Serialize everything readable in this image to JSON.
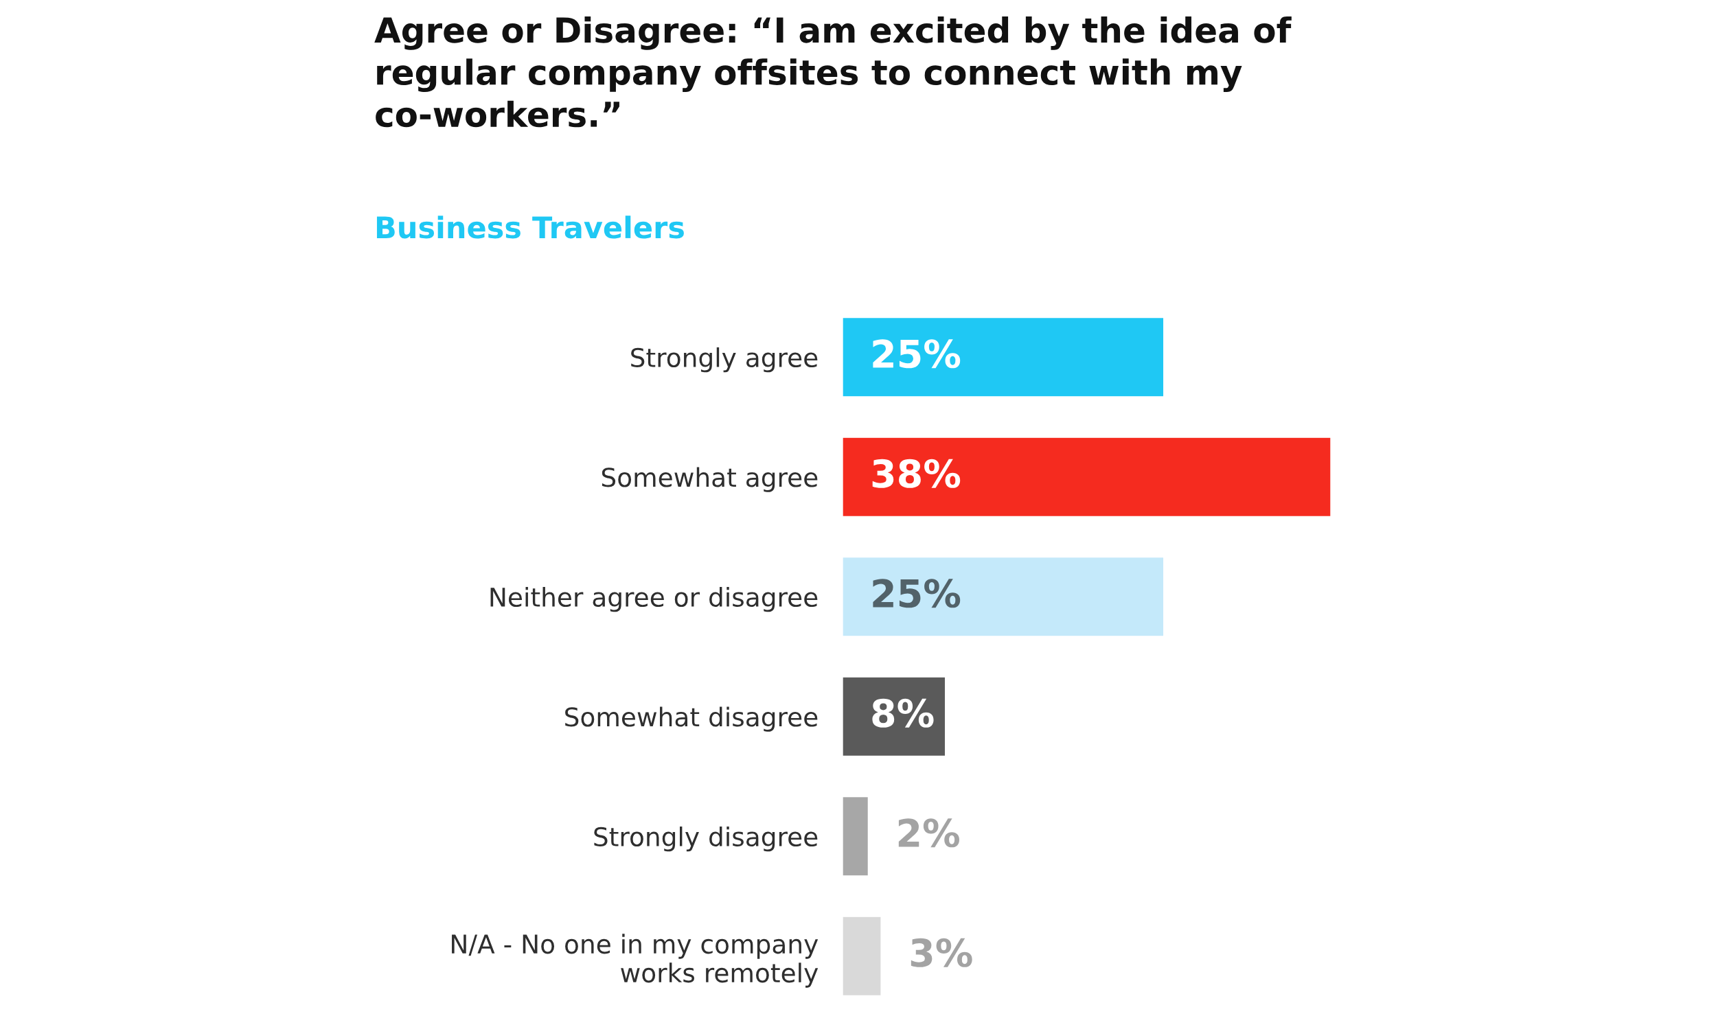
{
  "chart_data": {
    "type": "bar",
    "orientation": "horizontal",
    "title": "Agree or Disagree: “I am excited by the idea of\nregular company offsites to connect with my\nco-workers.”",
    "subtitle": "Business Travelers",
    "categories": [
      "Strongly agree",
      "Somewhat agree",
      "Neither agree or disagree",
      "Somewhat disagree",
      "Strongly disagree",
      "N/A - No one in my company\nworks remotely"
    ],
    "values": [
      25,
      38,
      25,
      8,
      2,
      3
    ],
    "colors": [
      "#1fc8f4",
      "#f52b1f",
      "#c4e9fa",
      "#5a5a5a",
      "#a7a7a7",
      "#d9d9d9"
    ],
    "value_labels": [
      "25%",
      "38%",
      "25%",
      "8%",
      "2%",
      "3%"
    ],
    "tick_labels": "y"
  }
}
